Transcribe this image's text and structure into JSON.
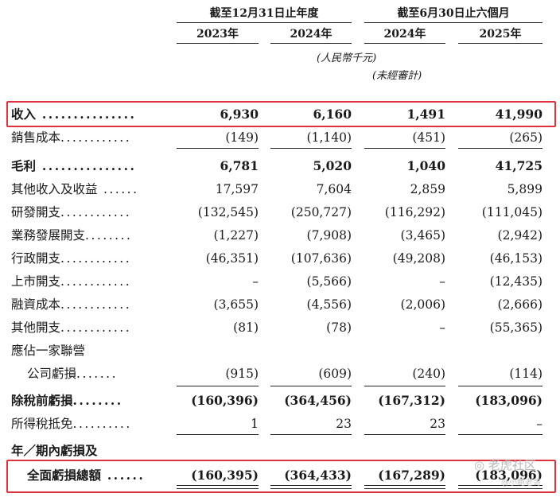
{
  "header": {
    "group1": "截至12月31日止年度",
    "group2": "截至6月30日止六個月",
    "years": [
      "2023年",
      "2024年",
      "2024年",
      "2025年"
    ],
    "unit": "(人民幣千元)",
    "unaudited": "(未經審計)"
  },
  "rows": [
    {
      "label": "收入",
      "values": [
        "6,930",
        "6,160",
        "1,491",
        "41,990"
      ],
      "bold": true
    },
    {
      "label": "銷售成本",
      "values": [
        "(149)",
        "(1,140)",
        "(451)",
        "(265)"
      ]
    },
    {
      "label": "毛利",
      "values": [
        "6,781",
        "5,020",
        "1,040",
        "41,725"
      ],
      "bold": true
    },
    {
      "label": "其他收入及收益",
      "values": [
        "17,597",
        "7,604",
        "2,859",
        "5,899"
      ]
    },
    {
      "label": "研發開支",
      "values": [
        "(132,545)",
        "(250,727)",
        "(116,292)",
        "(111,045)"
      ]
    },
    {
      "label": "業務發展開支",
      "values": [
        "(1,227)",
        "(7,908)",
        "(3,465)",
        "(2,942)"
      ]
    },
    {
      "label": "行政開支",
      "values": [
        "(46,351)",
        "(107,636)",
        "(49,208)",
        "(46,153)"
      ]
    },
    {
      "label": "上市開支",
      "values": [
        "–",
        "(5,566)",
        "–",
        "(12,435)"
      ]
    },
    {
      "label": "融資成本",
      "values": [
        "(3,655)",
        "(4,556)",
        "(2,006)",
        "(2,666)"
      ]
    },
    {
      "label": "其他開支",
      "values": [
        "(81)",
        "(78)",
        "–",
        "(55,365)"
      ]
    },
    {
      "label": "應佔一家聯營",
      "values": [
        "",
        "",
        "",
        ""
      ]
    },
    {
      "label": "公司虧損",
      "values": [
        "(915)",
        "(609)",
        "(240)",
        "(114)"
      ]
    },
    {
      "label": "除稅前虧損",
      "values": [
        "(160,396)",
        "(364,456)",
        "(167,312)",
        "(183,096)"
      ],
      "bold": true
    },
    {
      "label": "所得稅抵免",
      "values": [
        "1",
        "23",
        "23",
        "–"
      ]
    },
    {
      "label": "年／期內虧損及",
      "values": [
        "",
        "",
        "",
        ""
      ],
      "bold": true
    },
    {
      "label": "全面虧損總額",
      "values": [
        "(160,395)",
        "(364,433)",
        "(167,289)",
        "(183,096)"
      ],
      "bold": true
    }
  ],
  "watermark": {
    "main": "老虎社区",
    "sub": "@小鲍老哥"
  },
  "colors": {
    "highlight": "#e0323c",
    "text": "#1a1a1a"
  }
}
